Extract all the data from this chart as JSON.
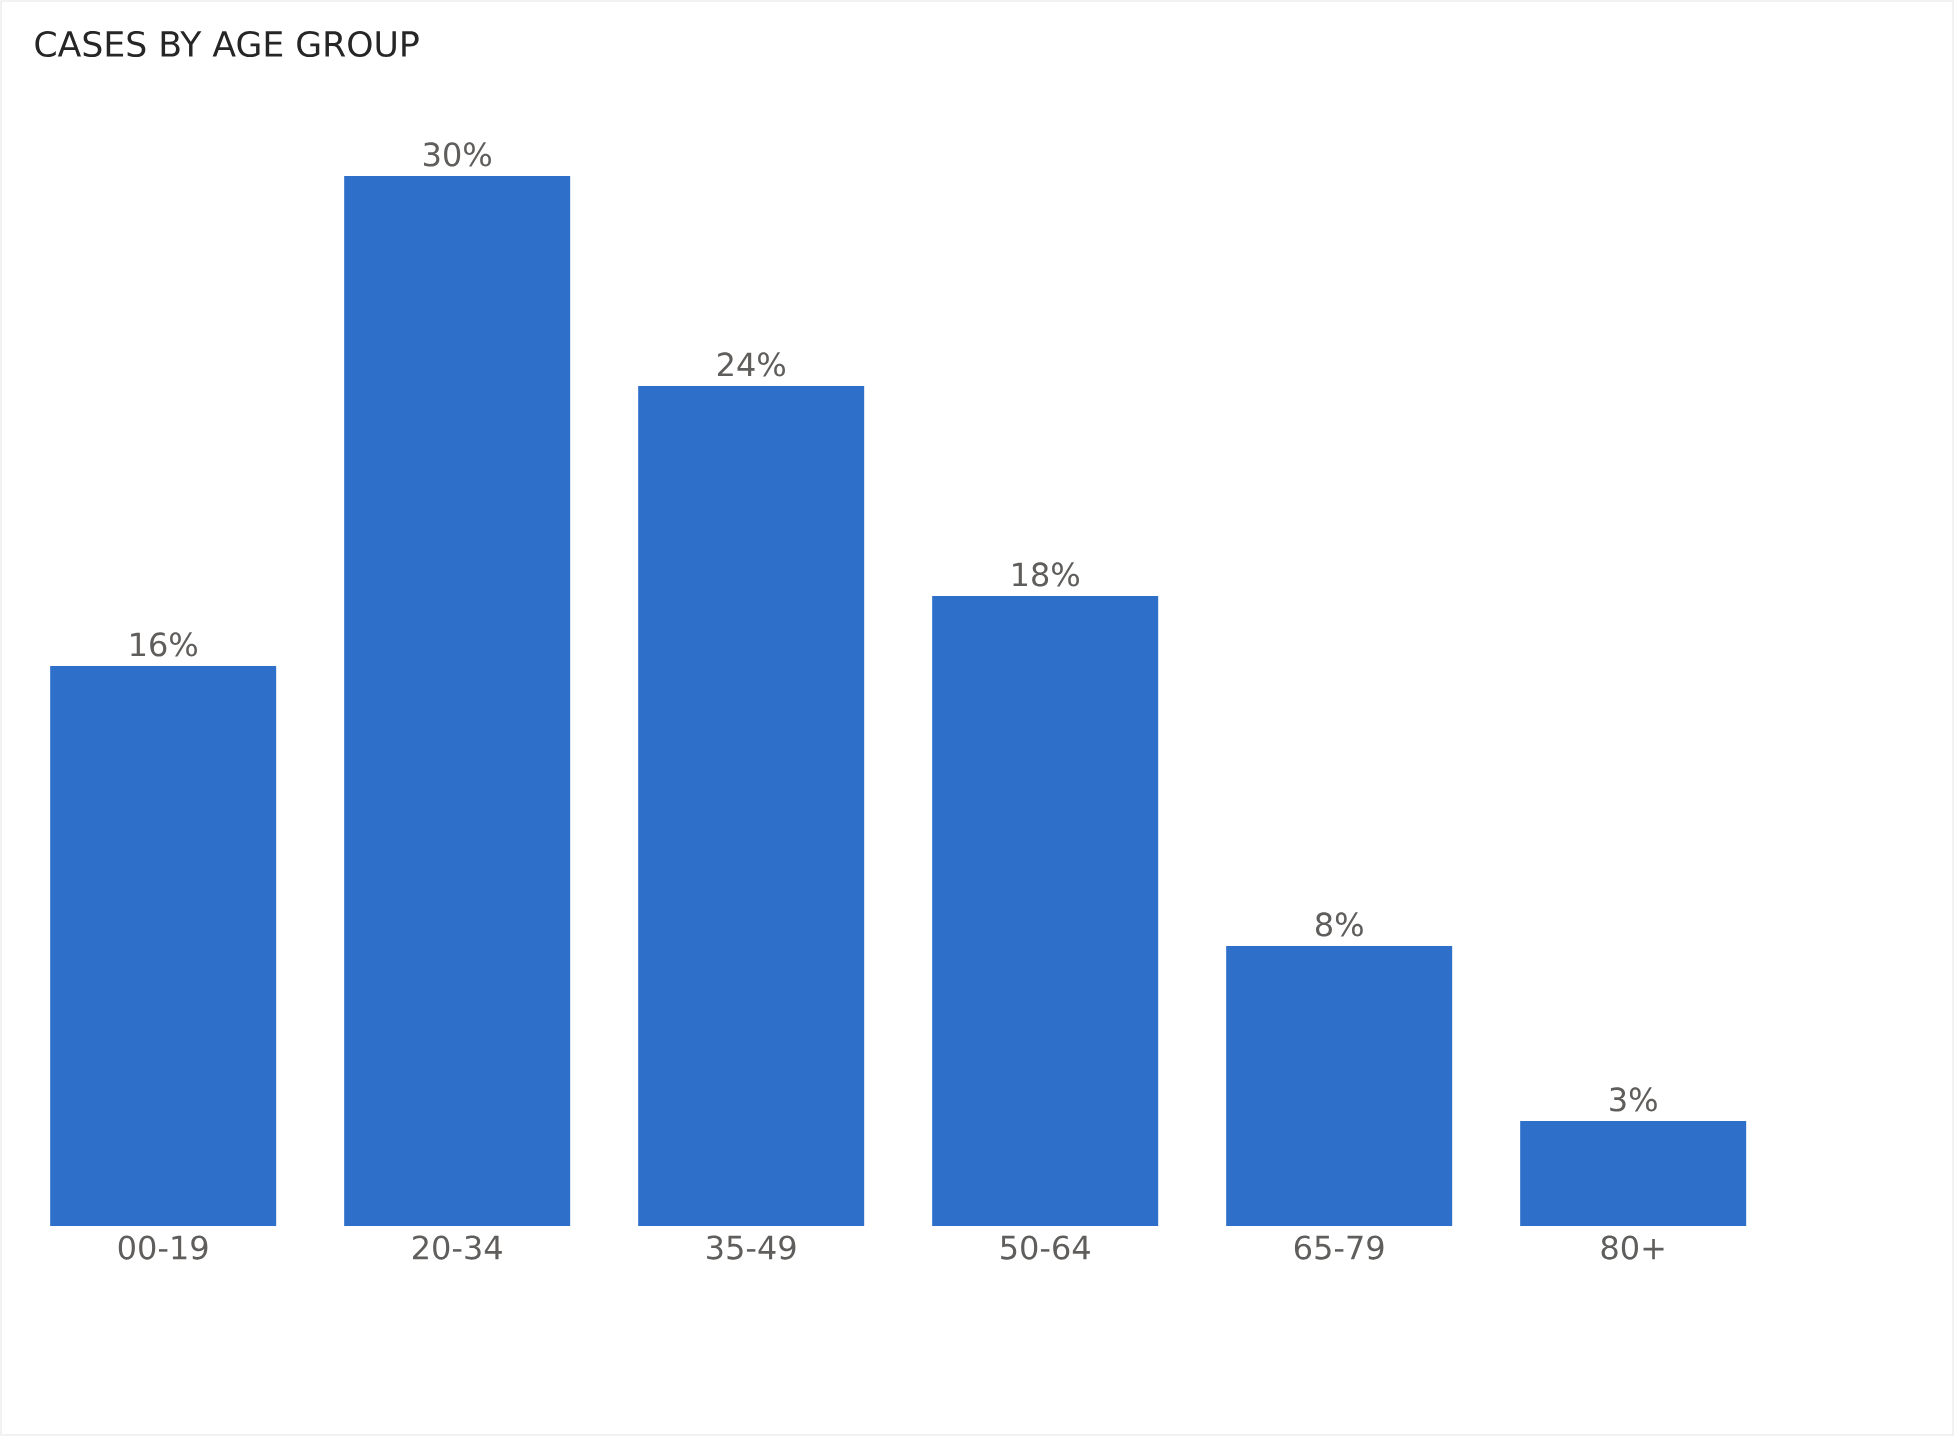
{
  "chart_data": {
    "type": "bar",
    "title": "CASES BY AGE GROUP",
    "categories": [
      "00-19",
      "20-34",
      "35-49",
      "50-64",
      "65-79",
      "80+"
    ],
    "values": [
      16,
      30,
      24,
      18,
      8,
      3
    ],
    "value_labels": [
      "16%",
      "30%",
      "24%",
      "18%",
      "8%",
      "3%"
    ],
    "color": "#2e6fc9"
  }
}
